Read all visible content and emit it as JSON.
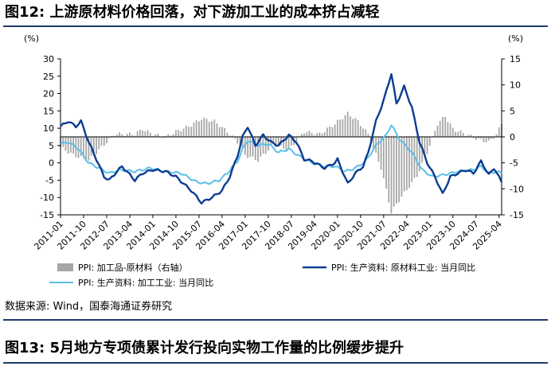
{
  "figure": {
    "title": "图12:  上游原材料价格回落，对下游加工业的成本挤占减轻",
    "source": "数据来源:  Wind，国泰海通证券研究",
    "next_title": "图13:  5月地方专项债累计发行投向实物工作量的比例缓步提升"
  },
  "colors": {
    "bars": "#a6a6a6",
    "raw_material": "#0b3d91",
    "processing": "#5bbfe8",
    "rule": "#1f3b6b"
  },
  "chart_data": {
    "type": "bar+line",
    "left_unit": "(%)",
    "right_unit": "(%)",
    "left_axis": {
      "min": -15,
      "max": 30,
      "ticks": [
        -15,
        -10,
        -5,
        0,
        5,
        10,
        15,
        20,
        25,
        30
      ]
    },
    "right_axis": {
      "min": -15,
      "max": 15,
      "ticks": [
        -15,
        -10,
        -5,
        0,
        5,
        10,
        15
      ]
    },
    "x_range": {
      "start": "2011-01",
      "end": "2025-05"
    },
    "x_ticks": [
      "2011-01",
      "2011-10",
      "2012-07",
      "2013-04",
      "2014-01",
      "2014-10",
      "2015-07",
      "2016-04",
      "2017-01",
      "2017-10",
      "2018-07",
      "2019-04",
      "2020-01",
      "2020-10",
      "2021-07",
      "2022-04",
      "2023-01",
      "2023-10",
      "2024-07",
      "2025-04"
    ],
    "legend": [
      {
        "key": "spread",
        "label": "PPI: 加工品-原材料（右轴）",
        "marker": "bar"
      },
      {
        "key": "raw",
        "label": "PPI: 生产资料: 原材料工业: 当月同比",
        "marker": "line"
      },
      {
        "key": "proc",
        "label": "PPI: 生产资料: 加工工业: 当月同比",
        "marker": "line"
      }
    ],
    "series_raw_anchors": [
      [
        "2011-01",
        10.5
      ],
      [
        "2011-04",
        12.0
      ],
      [
        "2011-07",
        10.5
      ],
      [
        "2011-09",
        12.0
      ],
      [
        "2011-12",
        6.0
      ],
      [
        "2012-03",
        1.0
      ],
      [
        "2012-06",
        -4.0
      ],
      [
        "2012-08",
        -5.0
      ],
      [
        "2012-11",
        -2.5
      ],
      [
        "2013-01",
        -1.0
      ],
      [
        "2013-06",
        -5.0
      ],
      [
        "2013-09",
        -3.0
      ],
      [
        "2014-01",
        -2.0
      ],
      [
        "2014-06",
        -2.5
      ],
      [
        "2014-10",
        -4.0
      ],
      [
        "2015-01",
        -6.0
      ],
      [
        "2015-04",
        -8.0
      ],
      [
        "2015-08",
        -11.5
      ],
      [
        "2015-12",
        -10.0
      ],
      [
        "2016-04",
        -8.0
      ],
      [
        "2016-07",
        -4.0
      ],
      [
        "2016-10",
        2.0
      ],
      [
        "2016-12",
        7.5
      ],
      [
        "2017-02",
        10.5
      ],
      [
        "2017-05",
        5.0
      ],
      [
        "2017-08",
        8.0
      ],
      [
        "2017-11",
        6.0
      ],
      [
        "2018-02",
        5.0
      ],
      [
        "2018-06",
        8.0
      ],
      [
        "2018-09",
        6.0
      ],
      [
        "2018-12",
        1.0
      ],
      [
        "2019-03",
        0.5
      ],
      [
        "2019-08",
        -1.5
      ],
      [
        "2019-12",
        0.0
      ],
      [
        "2020-01",
        1.0
      ],
      [
        "2020-05",
        -6.0
      ],
      [
        "2020-08",
        -3.0
      ],
      [
        "2020-11",
        -1.0
      ],
      [
        "2021-01",
        3.0
      ],
      [
        "2021-04",
        12.0
      ],
      [
        "2021-07",
        18.0
      ],
      [
        "2021-10",
        25.8
      ],
      [
        "2021-12",
        17.0
      ],
      [
        "2022-03",
        22.0
      ],
      [
        "2022-06",
        16.0
      ],
      [
        "2022-09",
        6.0
      ],
      [
        "2022-12",
        0.0
      ],
      [
        "2023-03",
        -4.0
      ],
      [
        "2023-06",
        -9.0
      ],
      [
        "2023-09",
        -4.0
      ],
      [
        "2023-12",
        -3.0
      ],
      [
        "2024-03",
        -2.0
      ],
      [
        "2024-06",
        -3.0
      ],
      [
        "2024-09",
        0.5
      ],
      [
        "2024-12",
        -3.5
      ],
      [
        "2025-02",
        -1.5
      ],
      [
        "2025-05",
        -5.5
      ]
    ],
    "series_proc_anchors": [
      [
        "2011-01",
        5.5
      ],
      [
        "2011-04",
        6.0
      ],
      [
        "2011-08",
        4.0
      ],
      [
        "2011-12",
        0.0
      ],
      [
        "2012-04",
        -1.5
      ],
      [
        "2012-08",
        -3.0
      ],
      [
        "2012-12",
        -2.0
      ],
      [
        "2013-06",
        -2.5
      ],
      [
        "2013-12",
        -1.5
      ],
      [
        "2014-06",
        -2.5
      ],
      [
        "2014-12",
        -3.0
      ],
      [
        "2015-06",
        -5.5
      ],
      [
        "2015-10",
        -6.0
      ],
      [
        "2016-03",
        -5.0
      ],
      [
        "2016-06",
        -3.0
      ],
      [
        "2016-10",
        0.5
      ],
      [
        "2016-12",
        4.0
      ],
      [
        "2017-02",
        6.5
      ],
      [
        "2017-06",
        5.0
      ],
      [
        "2017-10",
        5.5
      ],
      [
        "2018-02",
        3.0
      ],
      [
        "2018-06",
        4.0
      ],
      [
        "2018-10",
        2.0
      ],
      [
        "2019-03",
        0.0
      ],
      [
        "2019-08",
        -1.0
      ],
      [
        "2019-12",
        -1.0
      ],
      [
        "2020-04",
        -2.5
      ],
      [
        "2020-08",
        -1.5
      ],
      [
        "2020-12",
        0.5
      ],
      [
        "2021-04",
        5.0
      ],
      [
        "2021-08",
        8.0
      ],
      [
        "2021-10",
        11.0
      ],
      [
        "2022-01",
        7.0
      ],
      [
        "2022-06",
        3.0
      ],
      [
        "2022-10",
        -2.0
      ],
      [
        "2023-02",
        -4.0
      ],
      [
        "2023-06",
        -3.5
      ],
      [
        "2023-12",
        -2.5
      ],
      [
        "2024-06",
        -2.0
      ],
      [
        "2024-09",
        -1.0
      ],
      [
        "2024-12",
        -3.0
      ],
      [
        "2025-03",
        -2.5
      ],
      [
        "2025-05",
        -3.0
      ]
    ],
    "series_spread_anchors": [
      [
        "2011-01",
        -2.0
      ],
      [
        "2011-06",
        -3.5
      ],
      [
        "2011-12",
        -4.5
      ],
      [
        "2012-05",
        -2.0
      ],
      [
        "2012-10",
        0.5
      ],
      [
        "2013-01",
        0.5
      ],
      [
        "2013-06",
        0.5
      ],
      [
        "2013-09",
        1.5
      ],
      [
        "2014-01",
        0.5
      ],
      [
        "2014-06",
        0.0
      ],
      [
        "2014-10",
        1.0
      ],
      [
        "2015-03",
        2.0
      ],
      [
        "2015-08",
        3.5
      ],
      [
        "2016-01",
        3.0
      ],
      [
        "2016-06",
        1.0
      ],
      [
        "2016-10",
        -1.0
      ],
      [
        "2017-01",
        -3.5
      ],
      [
        "2017-06",
        -4.5
      ],
      [
        "2017-12",
        -1.5
      ],
      [
        "2018-06",
        -2.5
      ],
      [
        "2018-12",
        1.0
      ],
      [
        "2019-06",
        0.5
      ],
      [
        "2019-12",
        2.5
      ],
      [
        "2020-05",
        4.5
      ],
      [
        "2020-09",
        3.0
      ],
      [
        "2021-01",
        0.5
      ],
      [
        "2021-06",
        -6.0
      ],
      [
        "2021-10",
        -14.5
      ],
      [
        "2022-02",
        -11.5
      ],
      [
        "2022-08",
        -7.5
      ],
      [
        "2022-12",
        -3.0
      ],
      [
        "2023-04",
        2.5
      ],
      [
        "2023-07",
        4.0
      ],
      [
        "2023-10",
        1.5
      ],
      [
        "2024-03",
        0.5
      ],
      [
        "2024-08",
        -0.5
      ],
      [
        "2024-12",
        -1.0
      ],
      [
        "2025-03",
        0.5
      ],
      [
        "2025-05",
        2.5
      ]
    ]
  }
}
